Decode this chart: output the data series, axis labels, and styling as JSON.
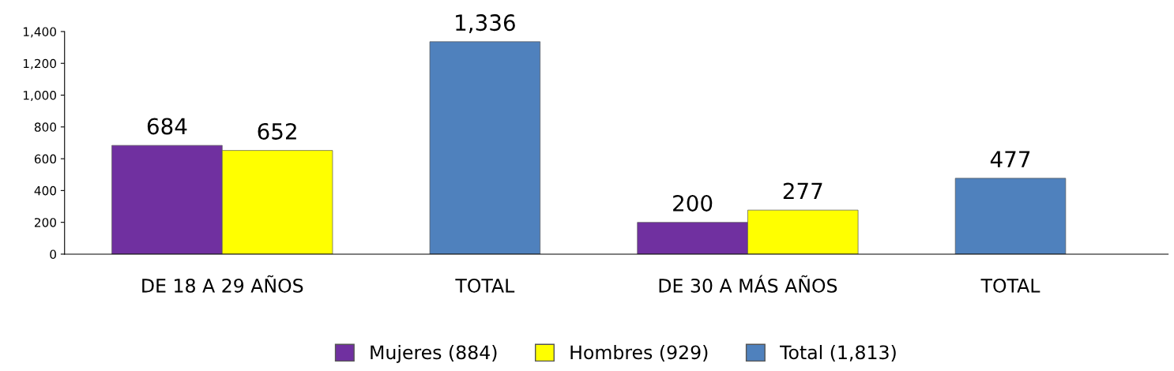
{
  "chart_data": {
    "type": "bar",
    "categories": [
      "DE 18 A 29 AÑOS",
      "TOTAL",
      "DE 30 A MÁS AÑOS",
      "TOTAL"
    ],
    "series": [
      {
        "name": "Mujeres (884)",
        "color": "#7030a0",
        "values": [
          684,
          null,
          200,
          null
        ],
        "value_labels": [
          "684",
          null,
          "200",
          null
        ]
      },
      {
        "name": "Hombres (929)",
        "color": "#ffff00",
        "values": [
          652,
          null,
          277,
          null
        ],
        "value_labels": [
          "652",
          null,
          "277",
          null
        ]
      },
      {
        "name": "Total (1,813)",
        "color": "#4f81bd",
        "values": [
          null,
          1336,
          null,
          477
        ],
        "value_labels": [
          null,
          "1,336",
          null,
          "477"
        ]
      }
    ],
    "ylim": [
      0,
      1400
    ],
    "yticks": [
      0,
      200,
      400,
      600,
      800,
      {
        "value": 1000,
        "label": "1,000"
      },
      {
        "value": 1200,
        "label": "1,200"
      },
      {
        "value": 1400,
        "label": "1,400"
      }
    ],
    "grid": false,
    "legend": "bottom"
  }
}
